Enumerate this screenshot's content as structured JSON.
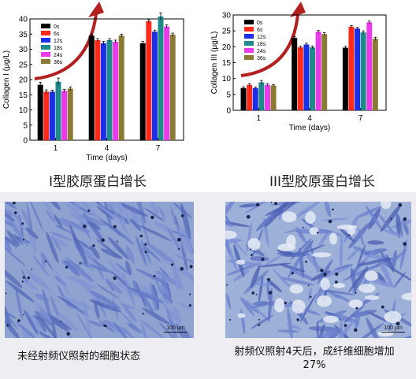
{
  "charts": {
    "colors": [
      "#000000",
      "#ff2a1a",
      "#1c2fe8",
      "#1e8a8a",
      "#ea3bea",
      "#8a7a33"
    ],
    "legend": [
      "0s",
      "6s",
      "12s",
      "18s",
      "24s",
      "36s"
    ]
  },
  "chart_data": [
    {
      "type": "bar",
      "categories": [
        "1",
        "4",
        "7"
      ],
      "series": [
        {
          "name": "0s",
          "values": [
            18.3,
            34.5,
            32.0
          ]
        },
        {
          "name": "6s",
          "values": [
            16.0,
            33.0,
            39.2
          ]
        },
        {
          "name": "12s",
          "values": [
            16.0,
            32.0,
            35.8
          ]
        },
        {
          "name": "18s",
          "values": [
            19.3,
            33.0,
            40.8
          ]
        },
        {
          "name": "24s",
          "values": [
            16.3,
            32.5,
            37.5
          ]
        },
        {
          "name": "36s",
          "values": [
            17.0,
            34.5,
            34.8
          ]
        }
      ],
      "errors": [
        [
          0.8,
          0.5,
          0.6
        ],
        [
          0.6,
          0.5,
          0.5
        ],
        [
          0.5,
          0.6,
          0.5
        ],
        [
          1.2,
          0.5,
          1.2
        ],
        [
          0.5,
          0.5,
          0.5
        ],
        [
          0.6,
          0.5,
          0.5
        ]
      ],
      "xlabel": "Time (days)",
      "ylabel": "Collagen I (μg/L)",
      "ylim": [
        0,
        40
      ],
      "yticks": [
        0,
        5,
        10,
        15,
        20,
        25,
        30,
        35,
        40
      ],
      "legend_position": "top-left",
      "caption": "I型胶原蛋白增长"
    },
    {
      "type": "bar",
      "categories": [
        "1",
        "4",
        "7"
      ],
      "series": [
        {
          "name": "0s",
          "values": [
            7.0,
            22.8,
            19.7
          ]
        },
        {
          "name": "6s",
          "values": [
            8.0,
            19.8,
            26.3
          ]
        },
        {
          "name": "12s",
          "values": [
            7.0,
            20.7,
            25.7
          ]
        },
        {
          "name": "18s",
          "values": [
            8.8,
            19.8,
            24.5
          ]
        },
        {
          "name": "24s",
          "values": [
            8.0,
            24.7,
            27.7
          ]
        },
        {
          "name": "36s",
          "values": [
            7.8,
            24.0,
            22.5
          ]
        }
      ],
      "errors": [
        [
          0.4,
          0.4,
          0.4
        ],
        [
          0.4,
          0.4,
          0.4
        ],
        [
          0.3,
          0.4,
          0.4
        ],
        [
          0.6,
          0.4,
          0.5
        ],
        [
          0.4,
          0.4,
          0.4
        ],
        [
          0.3,
          0.4,
          0.5
        ]
      ],
      "xlabel": "Time (days)",
      "ylabel": "Collagen III (μg/L)",
      "ylim": [
        0,
        30
      ],
      "yticks": [
        0,
        5,
        10,
        15,
        20,
        25,
        30
      ],
      "legend_position": "top-left",
      "caption": "III型胶原蛋白增长"
    }
  ],
  "photos": [
    {
      "scale_label": "100 μm",
      "caption": "未经射频仪照射的细胞状态"
    },
    {
      "scale_label": "100 μm",
      "caption": "射频仪照射4天后，成纤维细胞增加27%"
    }
  ]
}
